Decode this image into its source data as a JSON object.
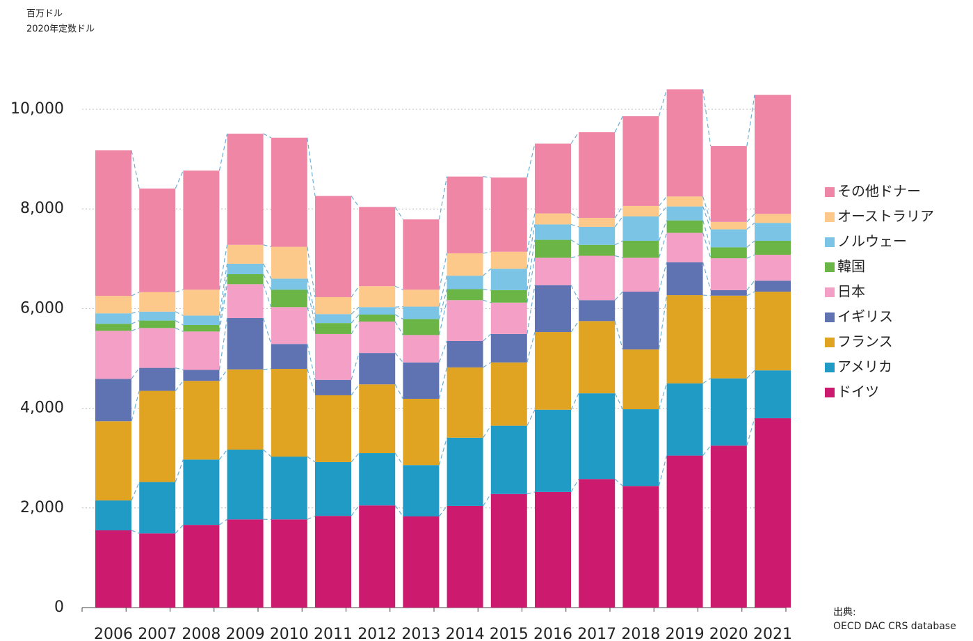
{
  "chart_data": {
    "type": "stacked_bar",
    "units_label": [
      "百万ドル",
      "2020年定数ドル"
    ],
    "source_label": "出典:",
    "source": "OECD DAC CRS database",
    "categories": [
      "2006",
      "2007",
      "2008",
      "2009",
      "2010",
      "2011",
      "2012",
      "2013",
      "2014",
      "2015",
      "2016",
      "2017",
      "2018",
      "2019",
      "2020",
      "2021"
    ],
    "series": [
      {
        "name": "ドイツ",
        "color": "#cc1a6e",
        "values": [
          1550,
          1490,
          1660,
          1770,
          1770,
          1840,
          2050,
          1830,
          2040,
          2280,
          2320,
          2580,
          2440,
          3050,
          3250,
          3800
        ]
      },
      {
        "name": "アメリカ",
        "color": "#1f9bc6",
        "values": [
          600,
          1030,
          1310,
          1400,
          1260,
          1080,
          1050,
          1030,
          1370,
          1370,
          1650,
          1720,
          1540,
          1450,
          1350,
          960
        ]
      },
      {
        "name": "フランス",
        "color": "#e0a322",
        "values": [
          1590,
          1830,
          1580,
          1610,
          1760,
          1340,
          1380,
          1330,
          1410,
          1270,
          1560,
          1450,
          1200,
          1770,
          1660,
          1580
        ]
      },
      {
        "name": "イギリス",
        "color": "#5f73b3",
        "values": [
          850,
          460,
          220,
          1030,
          500,
          310,
          630,
          730,
          530,
          570,
          940,
          420,
          1160,
          660,
          110,
          220
        ]
      },
      {
        "name": "日本",
        "color": "#f4a0c6",
        "values": [
          965,
          800,
          770,
          680,
          740,
          920,
          630,
          550,
          820,
          630,
          550,
          890,
          680,
          590,
          640,
          520
        ]
      },
      {
        "name": "韓国",
        "color": "#6ab545",
        "values": [
          140,
          150,
          130,
          200,
          350,
          220,
          140,
          320,
          220,
          250,
          360,
          220,
          340,
          250,
          220,
          280
        ]
      },
      {
        "name": "ノルウェー",
        "color": "#7cc4e6",
        "values": [
          210,
          180,
          190,
          210,
          220,
          180,
          150,
          250,
          270,
          430,
          310,
          360,
          490,
          280,
          360,
          360
        ]
      },
      {
        "name": "オーストラリア",
        "color": "#fdc98a",
        "values": [
          350,
          390,
          520,
          380,
          640,
          340,
          420,
          340,
          450,
          340,
          220,
          180,
          210,
          200,
          150,
          180
        ]
      },
      {
        "name": "その他ドナー",
        "color": "#ef86a5",
        "values": [
          2920,
          2080,
          2390,
          2230,
          2190,
          2030,
          1590,
          1410,
          1540,
          1490,
          1400,
          1720,
          1800,
          2150,
          1520,
          2390
        ]
      }
    ],
    "ylim": [
      0,
      11000
    ],
    "yticks": [
      0,
      {
        "value": 2000,
        "label": "2,000"
      },
      {
        "value": 4000,
        "label": "4,000"
      },
      {
        "value": 6000,
        "label": "6,000"
      },
      {
        "value": 8000,
        "label": "8,000"
      },
      {
        "value": 10000,
        "label": "10,000"
      }
    ],
    "grid": true,
    "connector_color": "#6baed6",
    "legend": "right"
  }
}
